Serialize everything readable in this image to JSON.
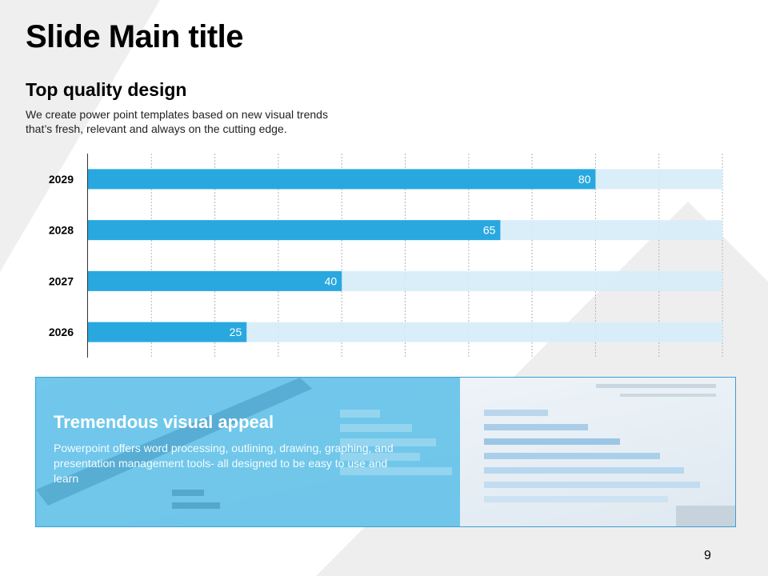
{
  "slide": {
    "title": "Slide Main title",
    "subtitle": "Top quality design",
    "description_lines": [
      "We create power point templates based on new visual trends",
      "that’s fresh, relevant and always on the cutting edge."
    ],
    "page_number": "9"
  },
  "banner": {
    "heading": "Tremendous visual appeal",
    "text": "Powerpoint offers word processing, outlining, drawing, graphing, and presentation management tools- all designed to be easy to use and learn"
  },
  "colors": {
    "accent": "#29a8e0",
    "track": "#d6ecf8",
    "banner_overlay": "#5fc0e8"
  },
  "chart_data": {
    "type": "bar",
    "orientation": "horizontal",
    "categories": [
      "2029",
      "2028",
      "2027",
      "2026"
    ],
    "values": [
      80,
      65,
      40,
      25
    ],
    "xlim": [
      0,
      100
    ],
    "grid": true
  }
}
